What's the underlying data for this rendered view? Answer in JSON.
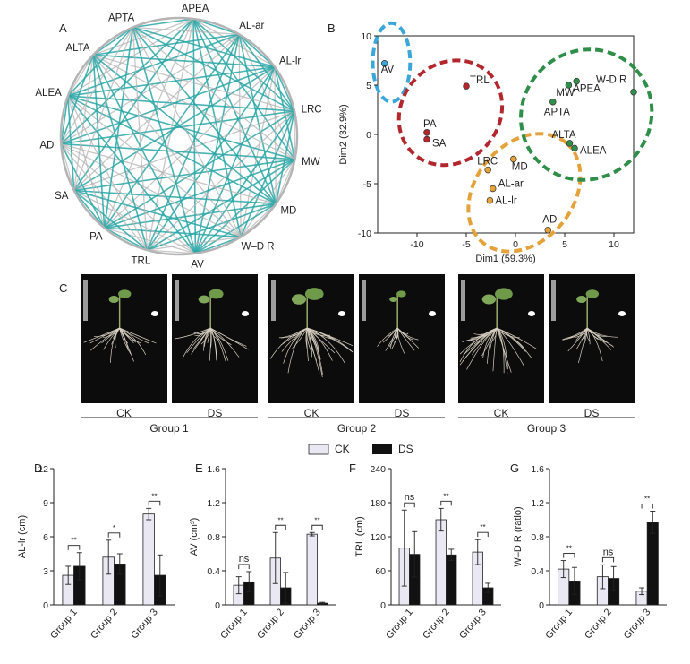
{
  "panels": {
    "a": "A",
    "b": "B",
    "c": "C",
    "d": "D",
    "e": "E",
    "f": "F",
    "g": "G"
  },
  "network": {
    "nodes": [
      "APEA",
      "AL-ar",
      "AL-lr",
      "LRC",
      "MW",
      "MD",
      "W–D R",
      "AV",
      "TRL",
      "PA",
      "SA",
      "AD",
      "ALEA",
      "ALTA",
      "APTA"
    ],
    "colors": {
      "positive": "#2aa6a6",
      "negative": "#b4b4b4"
    }
  },
  "photos": {
    "labels": [
      "CK",
      "DS",
      "CK",
      "DS",
      "CK",
      "DS"
    ],
    "groups": [
      "Group 1",
      "Group 2",
      "Group 3"
    ]
  },
  "legend": {
    "ck": "CK",
    "ds": "DS",
    "ck_color": "#e9e8f3",
    "ds_color": "#111111"
  },
  "chart_data": [
    {
      "type": "scatter",
      "panel": "B",
      "xlabel": "Dim1 (59.3%)",
      "ylabel": "Dim2 (32.9%)",
      "xlim": [
        -14,
        12
      ],
      "ylim": [
        -10,
        10
      ],
      "xticks": [
        -10,
        -5,
        0,
        5,
        10
      ],
      "yticks": [
        -10,
        -5,
        0,
        5,
        10
      ],
      "points": [
        {
          "label": "AV",
          "x": -13.3,
          "y": 7.2,
          "cluster": "blue"
        },
        {
          "label": "TRL",
          "x": -5.0,
          "y": 4.9,
          "cluster": "red"
        },
        {
          "label": "PA",
          "x": -9.0,
          "y": 0.2,
          "cluster": "red"
        },
        {
          "label": "SA",
          "x": -9.0,
          "y": -0.5,
          "cluster": "red"
        },
        {
          "label": "LRC",
          "x": -2.8,
          "y": -3.6,
          "cluster": "orange"
        },
        {
          "label": "MD",
          "x": -0.2,
          "y": -2.5,
          "cluster": "orange"
        },
        {
          "label": "AL-ar",
          "x": -2.3,
          "y": -5.5,
          "cluster": "orange"
        },
        {
          "label": "AL-lr",
          "x": -2.6,
          "y": -6.7,
          "cluster": "orange"
        },
        {
          "label": "AD",
          "x": 3.3,
          "y": -9.7,
          "cluster": "orange"
        },
        {
          "label": "MW",
          "x": 5.4,
          "y": 5.0,
          "cluster": "green"
        },
        {
          "label": "APEA",
          "x": 6.2,
          "y": 5.4,
          "cluster": "green"
        },
        {
          "label": "W-D R",
          "x": 12.0,
          "y": 4.3,
          "cluster": "green"
        },
        {
          "label": "APTA",
          "x": 3.8,
          "y": 3.3,
          "cluster": "green"
        },
        {
          "label": "ALTA",
          "x": 5.5,
          "y": -0.9,
          "cluster": "green"
        },
        {
          "label": "ALEA",
          "x": 6.0,
          "y": -1.4,
          "cluster": "green"
        }
      ],
      "cluster_colors": {
        "blue": "#3aa6da",
        "red": "#b3262e",
        "orange": "#e6a23a",
        "green": "#2f8f4a"
      }
    },
    {
      "type": "bar",
      "panel": "D",
      "categories": [
        "Group 1",
        "Group 2",
        "Group 3"
      ],
      "ylabel": "AL-lr (cm)",
      "ylim": [
        0,
        12
      ],
      "yticks": [
        0,
        3,
        6,
        9,
        12
      ],
      "series": [
        {
          "name": "CK",
          "values": [
            2.6,
            4.2,
            8.0
          ],
          "errors": [
            0.8,
            1.5,
            0.5
          ]
        },
        {
          "name": "DS",
          "values": [
            3.4,
            3.6,
            2.6
          ],
          "errors": [
            1.2,
            0.9,
            1.8
          ]
        }
      ],
      "significance": [
        "**",
        "*",
        "**"
      ]
    },
    {
      "type": "bar",
      "panel": "E",
      "categories": [
        "Group 1",
        "Group 2",
        "Group 3"
      ],
      "ylabel": "AV (cm³)",
      "ylim": [
        0,
        1.6
      ],
      "yticks": [
        "0",
        "0.4",
        "0.8",
        "1.2",
        "1.6"
      ],
      "series": [
        {
          "name": "CK",
          "values": [
            0.23,
            0.55,
            0.83
          ],
          "errors": [
            0.1,
            0.3,
            0.02
          ]
        },
        {
          "name": "DS",
          "values": [
            0.27,
            0.2,
            0.02
          ],
          "errors": [
            0.12,
            0.18,
            0.01
          ]
        }
      ],
      "significance": [
        "ns",
        "**",
        "**"
      ]
    },
    {
      "type": "bar",
      "panel": "F",
      "categories": [
        "Group 1",
        "Group 2",
        "Group 3"
      ],
      "ylabel": "TRL (cm)",
      "ylim": [
        0,
        240
      ],
      "yticks": [
        0,
        60,
        120,
        180,
        240
      ],
      "series": [
        {
          "name": "CK",
          "values": [
            100,
            150,
            93
          ],
          "errors": [
            67,
            20,
            22
          ]
        },
        {
          "name": "DS",
          "values": [
            89,
            88,
            30
          ],
          "errors": [
            40,
            10,
            8
          ]
        }
      ],
      "significance": [
        "ns",
        "**",
        "**"
      ]
    },
    {
      "type": "bar",
      "panel": "G",
      "categories": [
        "Group 1",
        "Group 2",
        "Group 3"
      ],
      "ylabel": "W–D R (ratio)",
      "ylim": [
        0,
        1.6
      ],
      "yticks": [
        "0",
        "0.4",
        "0.8",
        "1.2",
        "1.6"
      ],
      "series": [
        {
          "name": "CK",
          "values": [
            0.42,
            0.33,
            0.16
          ],
          "errors": [
            0.1,
            0.14,
            0.04
          ]
        },
        {
          "name": "DS",
          "values": [
            0.28,
            0.31,
            0.97
          ],
          "errors": [
            0.16,
            0.14,
            0.13
          ]
        }
      ],
      "significance": [
        "**",
        "ns",
        "**"
      ]
    }
  ]
}
